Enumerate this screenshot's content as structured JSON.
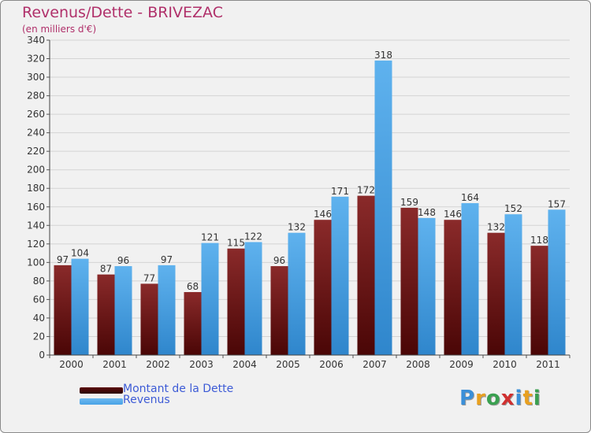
{
  "chart_data": {
    "type": "bar",
    "title": "Revenus/Dette - BRIVEZAC",
    "subtitle": "(en milliers d'€)",
    "categories": [
      "2000",
      "2001",
      "2002",
      "2003",
      "2004",
      "2005",
      "2006",
      "2007",
      "2008",
      "2009",
      "2010",
      "2011"
    ],
    "series": [
      {
        "name": "Montant de la Dette",
        "color": "#7a1a1a",
        "values": [
          97,
          87,
          77,
          68,
          115,
          96,
          146,
          172,
          159,
          146,
          132,
          118
        ]
      },
      {
        "name": "Revenus",
        "color": "#4aa3e6",
        "values": [
          104,
          96,
          97,
          121,
          122,
          132,
          171,
          318,
          148,
          164,
          152,
          157
        ]
      }
    ],
    "ylim": [
      0,
      340
    ],
    "ytick_step": 20,
    "grid": true,
    "legend_position": "bottom-left"
  },
  "legend": {
    "items": [
      {
        "label": "Montant de la Dette",
        "color": "#5c0d0d"
      },
      {
        "label": "Revenus",
        "color": "#4aa3e6"
      }
    ]
  },
  "logo": {
    "letters": [
      "P",
      "r",
      "o",
      "x",
      "i",
      "t",
      "i"
    ],
    "colors": [
      "#3a8fd8",
      "#e8a020",
      "#3aa050",
      "#d03030",
      "#3a8fd8",
      "#e8a020",
      "#3aa050"
    ]
  }
}
